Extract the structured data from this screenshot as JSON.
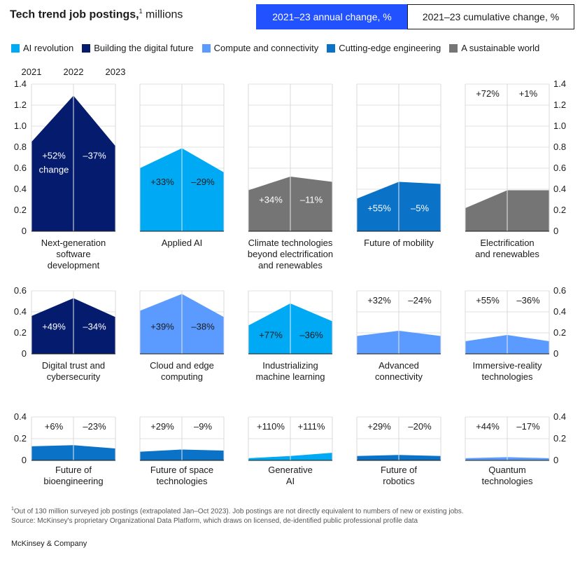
{
  "title": {
    "bold": "Tech trend job postings,",
    "sup": "1",
    "rest": " millions"
  },
  "toggles": {
    "annual": "2021–23 annual change, %",
    "cumulative": "2021–23 cumulative change, %",
    "active": "annual"
  },
  "legend": [
    {
      "label": "AI revolution",
      "color": "#00a9f4"
    },
    {
      "label": "Building the digital future",
      "color": "#051c6e"
    },
    {
      "label": "Compute and connectivity",
      "color": "#5b9bff"
    },
    {
      "label": "Cutting-edge engineering",
      "color": "#0a72c7"
    },
    {
      "label": "A sustainable world",
      "color": "#757575"
    }
  ],
  "chart_data": {
    "type": "area",
    "title": "Tech trend job postings, millions",
    "year_labels": [
      "2021",
      "2022",
      "2023"
    ],
    "change_word": "change",
    "rows": [
      {
        "ylim": [
          0,
          1.4
        ],
        "yticks": [
          "1.4",
          "1.2",
          "1.0",
          "0.8",
          "0.6",
          "0.4",
          "0.2",
          "0"
        ],
        "panels": [
          {
            "name": "Next-generation software development",
            "label_lines": [
              "Next-generation",
              "software",
              "development"
            ],
            "group": "Building the digital future",
            "values": [
              0.85,
              1.29,
              0.81
            ],
            "change_1": "+52%",
            "change_2": "–37%"
          },
          {
            "name": "Applied AI",
            "label_lines": [
              "Applied AI"
            ],
            "group": "AI revolution",
            "values": [
              0.6,
              0.79,
              0.56
            ],
            "change_1": "+33%",
            "change_2": "–29%"
          },
          {
            "name": "Climate technologies beyond electrification and renewables",
            "label_lines": [
              "Climate technologies",
              "beyond electrification",
              "and renewables"
            ],
            "group": "A sustainable world",
            "values": [
              0.39,
              0.52,
              0.47
            ],
            "change_1": "+34%",
            "change_2": "–11%"
          },
          {
            "name": "Future of mobility",
            "label_lines": [
              "Future of mobility"
            ],
            "group": "Cutting-edge engineering",
            "values": [
              0.31,
              0.47,
              0.45
            ],
            "change_1": "+55%",
            "change_2": "–5%"
          },
          {
            "name": "Electrification and renewables",
            "label_lines": [
              "Electrification",
              "and renewables"
            ],
            "group": "A sustainable world",
            "values": [
              0.22,
              0.39,
              0.39
            ],
            "change_1": "+72%",
            "change_2": "+1%"
          }
        ]
      },
      {
        "ylim": [
          0,
          0.6
        ],
        "yticks": [
          "0.6",
          "0.4",
          "0.2",
          "0"
        ],
        "panels": [
          {
            "name": "Digital trust and cybersecurity",
            "label_lines": [
              "Digital trust and",
              "cybersecurity"
            ],
            "group": "Building the digital future",
            "values": [
              0.36,
              0.53,
              0.35
            ],
            "change_1": "+49%",
            "change_2": "–34%"
          },
          {
            "name": "Cloud and edge computing",
            "label_lines": [
              "Cloud and edge",
              "computing"
            ],
            "group": "Compute and connectivity",
            "values": [
              0.41,
              0.57,
              0.35
            ],
            "change_1": "+39%",
            "change_2": "–38%"
          },
          {
            "name": "Industrializing machine learning",
            "label_lines": [
              "Industrializing",
              "machine learning"
            ],
            "group": "AI revolution",
            "values": [
              0.27,
              0.48,
              0.31
            ],
            "change_1": "+77%",
            "change_2": "–36%"
          },
          {
            "name": "Advanced connectivity",
            "label_lines": [
              "Advanced",
              "connectivity"
            ],
            "group": "Compute and connectivity",
            "values": [
              0.17,
              0.22,
              0.17
            ],
            "change_1": "+32%",
            "change_2": "–24%"
          },
          {
            "name": "Immersive-reality technologies",
            "label_lines": [
              "Immersive-reality",
              "technologies"
            ],
            "group": "Compute and connectivity",
            "values": [
              0.12,
              0.18,
              0.12
            ],
            "change_1": "+55%",
            "change_2": "–36%"
          }
        ]
      },
      {
        "ylim": [
          0,
          0.4
        ],
        "yticks": [
          "0.4",
          "0.2",
          "0"
        ],
        "panels": [
          {
            "name": "Future of bioengineering",
            "label_lines": [
              "Future of",
              "bioengineering"
            ],
            "group": "Cutting-edge engineering",
            "values": [
              0.13,
              0.14,
              0.11
            ],
            "change_1": "+6%",
            "change_2": "–23%"
          },
          {
            "name": "Future of space technologies",
            "label_lines": [
              "Future of space",
              "technologies"
            ],
            "group": "Cutting-edge engineering",
            "values": [
              0.08,
              0.1,
              0.09
            ],
            "change_1": "+29%",
            "change_2": "–9%"
          },
          {
            "name": "Generative AI",
            "label_lines": [
              "Generative",
              "AI"
            ],
            "group": "AI revolution",
            "values": [
              0.02,
              0.04,
              0.07
            ],
            "change_1": "+110%",
            "change_2": "+111%"
          },
          {
            "name": "Future of robotics",
            "label_lines": [
              "Future of",
              "robotics"
            ],
            "group": "Cutting-edge engineering",
            "values": [
              0.04,
              0.05,
              0.04
            ],
            "change_1": "+29%",
            "change_2": "–20%"
          },
          {
            "name": "Quantum technologies",
            "label_lines": [
              "Quantum",
              "technologies"
            ],
            "group": "Compute and connectivity",
            "values": [
              0.02,
              0.03,
              0.02
            ],
            "change_1": "+44%",
            "change_2": "–17%"
          }
        ]
      }
    ]
  },
  "footnote": {
    "sup": "1",
    "line1": "Out of 130 million surveyed job postings (extrapolated Jan–Oct 2023). Job postings are not directly equivalent to numbers of new or existing jobs.",
    "line2": "Source: McKinsey's proprietary Organizational Data Platform, which draws on licensed, de-identified public professional profile data"
  },
  "brand": "McKinsey & Company"
}
